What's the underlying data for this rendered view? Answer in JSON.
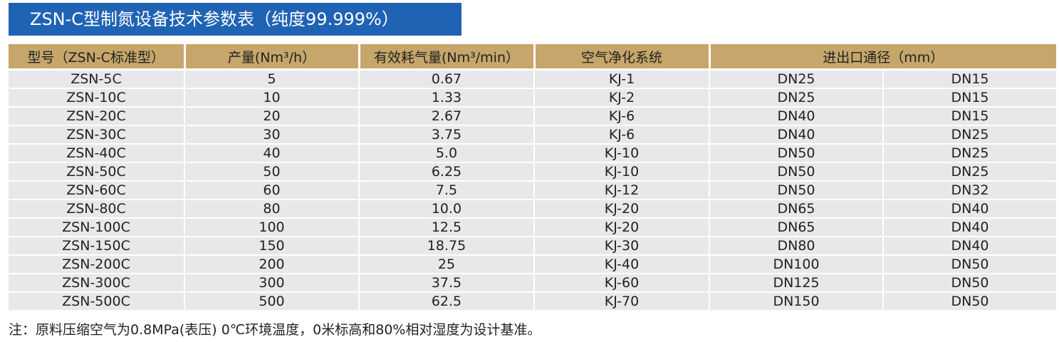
{
  "title": "ZSN-C型制氮设备技术参数表（纯度99.999%）",
  "table": {
    "headers": [
      "型号（ZSN-C标准型）",
      "产量(Nm³/h）",
      "有效耗气量(Nm³/min）",
      "空气净化系统",
      "进出口通径（mm）"
    ],
    "rows": [
      [
        "ZSN-5C",
        "5",
        "0.67",
        "KJ-1",
        "DN25",
        "DN15"
      ],
      [
        "ZSN-10C",
        "10",
        "1.33",
        "KJ-2",
        "DN25",
        "DN15"
      ],
      [
        "ZSN-20C",
        "20",
        "2.67",
        "KJ-6",
        "DN40",
        "DN15"
      ],
      [
        "ZSN-30C",
        "30",
        "3.75",
        "KJ-6",
        "DN40",
        "DN25"
      ],
      [
        "ZSN-40C",
        "40",
        "5.0",
        "KJ-10",
        "DN50",
        "DN25"
      ],
      [
        "ZSN-50C",
        "50",
        "6.25",
        "KJ-10",
        "DN50",
        "DN25"
      ],
      [
        "ZSN-60C",
        "60",
        "7.5",
        "KJ-12",
        "DN50",
        "DN32"
      ],
      [
        "ZSN-80C",
        "80",
        "10.0",
        "KJ-20",
        "DN65",
        "DN40"
      ],
      [
        "ZSN-100C",
        "100",
        "12.5",
        "KJ-20",
        "DN65",
        "DN40"
      ],
      [
        "ZSN-150C",
        "150",
        "18.75",
        "KJ-30",
        "DN80",
        "DN40"
      ],
      [
        "ZSN-200C",
        "200",
        "25",
        "KJ-40",
        "DN100",
        "DN50"
      ],
      [
        "ZSN-300C",
        "300",
        "37.5",
        "KJ-60",
        "DN125",
        "DN50"
      ],
      [
        "ZSN-500C",
        "500",
        "62.5",
        "KJ-70",
        "DN150",
        "DN50"
      ]
    ]
  },
  "footnote": "注：原料压缩空气为0.8MPa(表压) 0℃环境温度，0米标高和80%相对湿度为设计基准。",
  "colors": {
    "title_bg": "#1f63b4",
    "header_bg": "#c6a66a",
    "row_bg": "#e8e8ea"
  }
}
